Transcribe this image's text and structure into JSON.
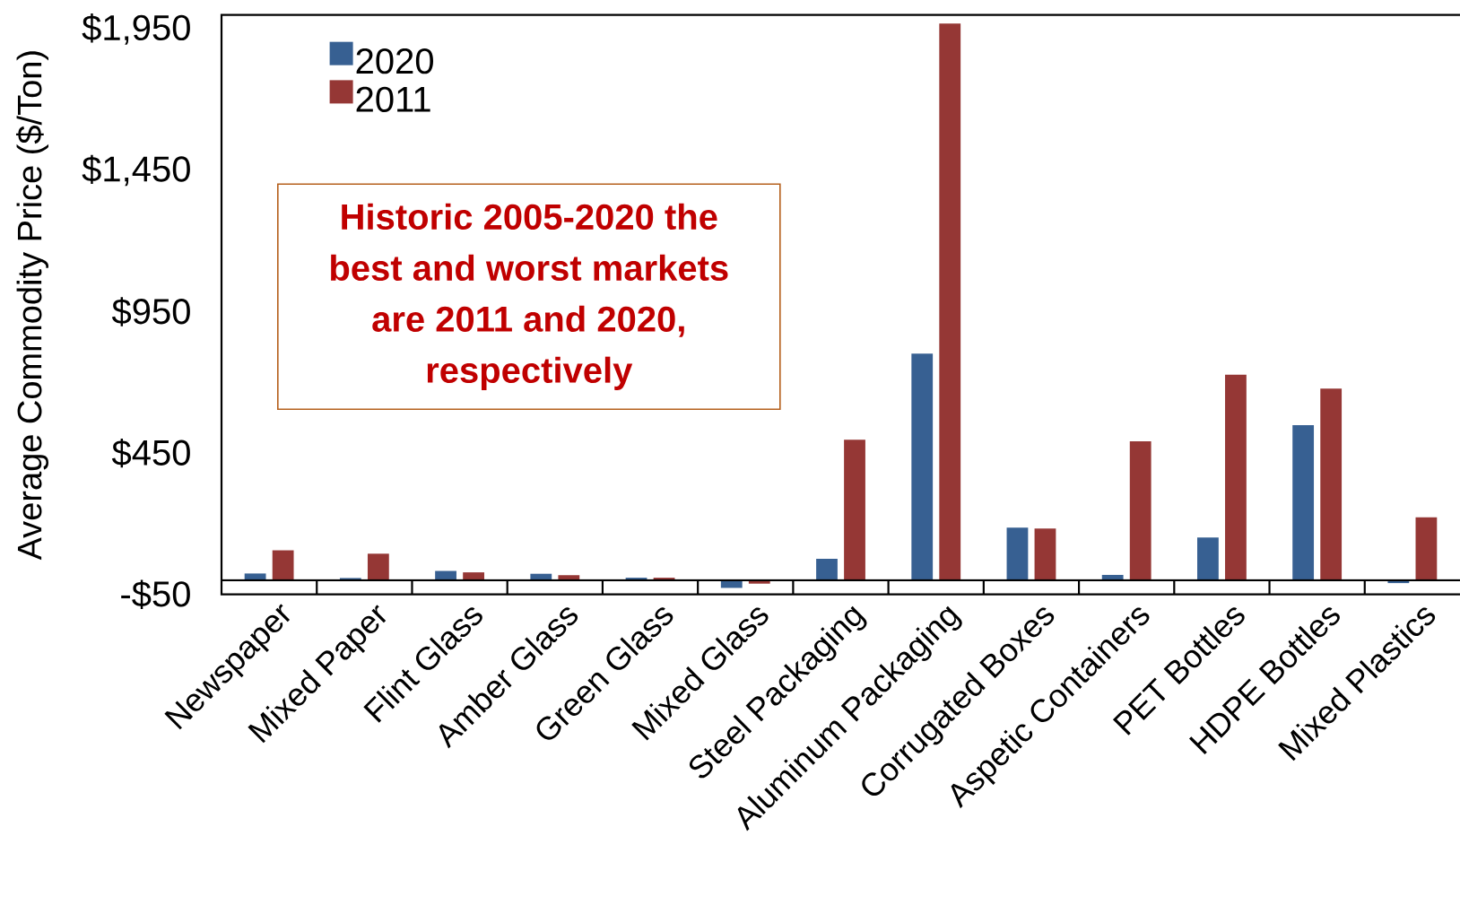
{
  "chart_data": {
    "type": "bar",
    "ylabel": "Average Commodity Price ($/Ton)",
    "categories": [
      "Newspaper",
      "Mixed Paper",
      "Flint Glass",
      "Amber Glass",
      "Green Glass",
      "Mixed Glass",
      "Steel Packaging",
      "Aluminum Packaging",
      "Corrugated Boxes",
      "Aspetic Containers",
      "PET Bottles",
      "HDPE Bottles",
      "Mixed Plastics"
    ],
    "series": [
      {
        "name": "2020",
        "color": "#376092",
        "values": [
          24,
          8,
          33,
          23,
          9,
          -27,
          76,
          802,
          186,
          19,
          151,
          549,
          -10
        ]
      },
      {
        "name": "2011",
        "color": "#953735",
        "values": [
          106,
          94,
          28,
          18,
          9,
          -12,
          497,
          1970,
          183,
          492,
          727,
          678,
          223
        ]
      }
    ],
    "ylim": [
      -50,
      2000
    ],
    "yticks": [
      {
        "value": -50,
        "label": "-$50"
      },
      {
        "value": 450,
        "label": "$450"
      },
      {
        "value": 950,
        "label": "$950"
      },
      {
        "value": 1450,
        "label": "$1,450"
      },
      {
        "value": 1950,
        "label": "$1,950"
      }
    ],
    "legend": "top left",
    "annotations": [
      "Historic 2005-2020 the best and worst markets are 2011 and 2020, respectively"
    ]
  }
}
